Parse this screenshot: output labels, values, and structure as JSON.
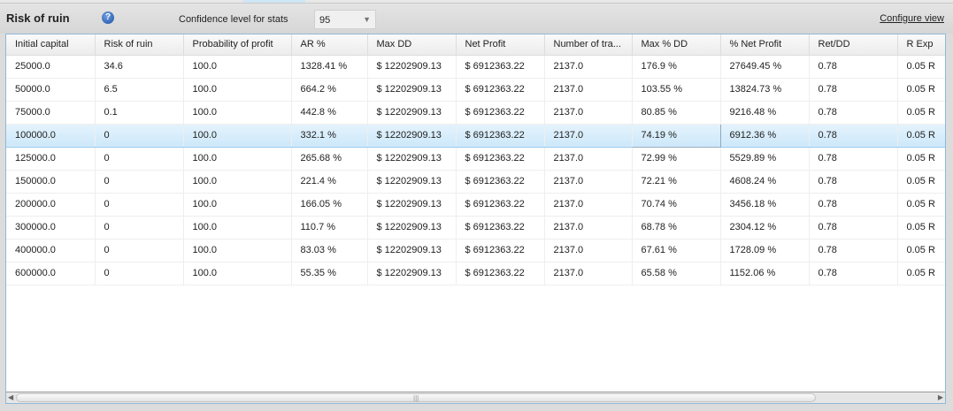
{
  "panel": {
    "title": "Risk of ruin",
    "confidence_label": "Confidence level for stats",
    "confidence_value": "95",
    "configure_view": "Configure view"
  },
  "table": {
    "columns": [
      "Initial capital",
      "Risk of ruin",
      "Probability of profit",
      "AR %",
      "Max DD",
      "Net Profit",
      "Number of tra...",
      "Max % DD",
      "% Net Profit",
      "Ret/DD",
      "R Exp"
    ],
    "rows": [
      [
        "25000.0",
        "34.6",
        "100.0",
        "1328.41 %",
        "$ 12202909.13",
        "$ 6912363.22",
        "2137.0",
        "176.9 %",
        "27649.45 %",
        "0.78",
        "0.05 R"
      ],
      [
        "50000.0",
        "6.5",
        "100.0",
        "664.2 %",
        "$ 12202909.13",
        "$ 6912363.22",
        "2137.0",
        "103.55 %",
        "13824.73 %",
        "0.78",
        "0.05 R"
      ],
      [
        "75000.0",
        "0.1",
        "100.0",
        "442.8 %",
        "$ 12202909.13",
        "$ 6912363.22",
        "2137.0",
        "80.85 %",
        "9216.48 %",
        "0.78",
        "0.05 R"
      ],
      [
        "100000.0",
        "0",
        "100.0",
        "332.1 %",
        "$ 12202909.13",
        "$ 6912363.22",
        "2137.0",
        "74.19 %",
        "6912.36 %",
        "0.78",
        "0.05 R"
      ],
      [
        "125000.0",
        "0",
        "100.0",
        "265.68 %",
        "$ 12202909.13",
        "$ 6912363.22",
        "2137.0",
        "72.99 %",
        "5529.89 %",
        "0.78",
        "0.05 R"
      ],
      [
        "150000.0",
        "0",
        "100.0",
        "221.4 %",
        "$ 12202909.13",
        "$ 6912363.22",
        "2137.0",
        "72.21 %",
        "4608.24 %",
        "0.78",
        "0.05 R"
      ],
      [
        "200000.0",
        "0",
        "100.0",
        "166.05 %",
        "$ 12202909.13",
        "$ 6912363.22",
        "2137.0",
        "70.74 %",
        "3456.18 %",
        "0.78",
        "0.05 R"
      ],
      [
        "300000.0",
        "0",
        "100.0",
        "110.7 %",
        "$ 12202909.13",
        "$ 6912363.22",
        "2137.0",
        "68.78 %",
        "2304.12 %",
        "0.78",
        "0.05 R"
      ],
      [
        "400000.0",
        "0",
        "100.0",
        "83.03 %",
        "$ 12202909.13",
        "$ 6912363.22",
        "2137.0",
        "67.61 %",
        "1728.09 %",
        "0.78",
        "0.05 R"
      ],
      [
        "600000.0",
        "0",
        "100.0",
        "55.35 %",
        "$ 12202909.13",
        "$ 6912363.22",
        "2137.0",
        "65.58 %",
        "1152.06 %",
        "0.78",
        "0.05 R"
      ]
    ],
    "selected_row": 3
  }
}
